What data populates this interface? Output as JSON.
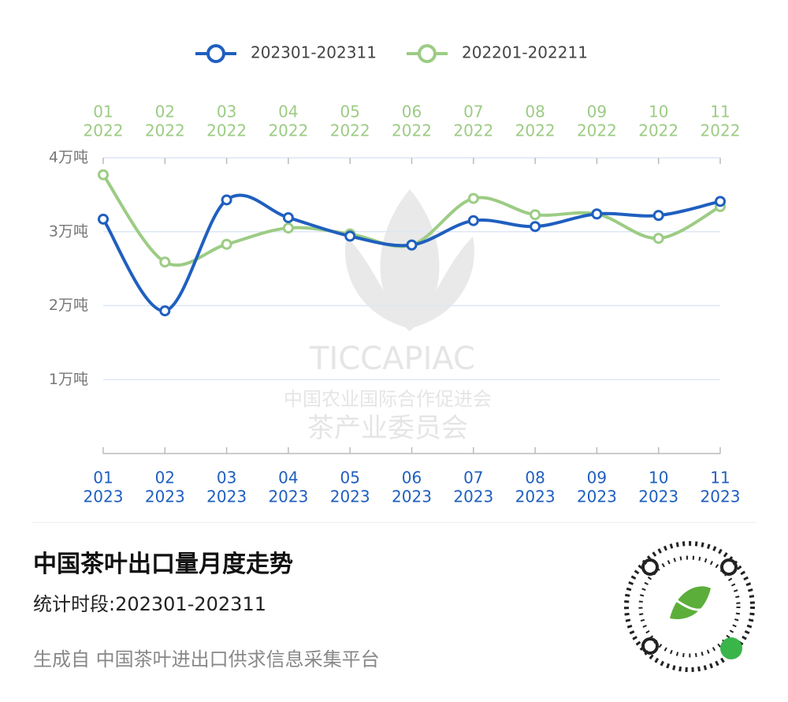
{
  "chart_data": {
    "type": "line",
    "title": "中国茶叶出口量月度走势",
    "subtitle": "统计时段:202301-202311",
    "footer": "生成自 中国茶叶进出口供求信息采集平台",
    "watermark": [
      "TICCAPIAC",
      "中国农业国际合作促进会",
      "茶产业委员会"
    ],
    "categories": [
      "01",
      "02",
      "03",
      "04",
      "05",
      "06",
      "07",
      "08",
      "09",
      "10",
      "11"
    ],
    "x_year": "2023",
    "x2_year": "2022",
    "ylim": [
      0,
      4
    ],
    "yticks": [
      {
        "value": 1,
        "label": "1万吨"
      },
      {
        "value": 2,
        "label": "2万吨"
      },
      {
        "value": 3,
        "label": "3万吨"
      },
      {
        "value": 4,
        "label": "4万吨"
      }
    ],
    "grid": true,
    "smooth": true,
    "series": [
      {
        "name": "202301-202311",
        "color": "#1f5fbf",
        "values": [
          3.17,
          1.93,
          3.43,
          3.19,
          2.94,
          2.82,
          3.15,
          3.07,
          3.24,
          3.22,
          3.41
        ]
      },
      {
        "name": "202201-202211",
        "color": "#9ccc84",
        "values": [
          3.77,
          2.59,
          2.83,
          3.05,
          2.97,
          2.82,
          3.45,
          3.23,
          3.24,
          2.91,
          3.34
        ]
      }
    ]
  }
}
